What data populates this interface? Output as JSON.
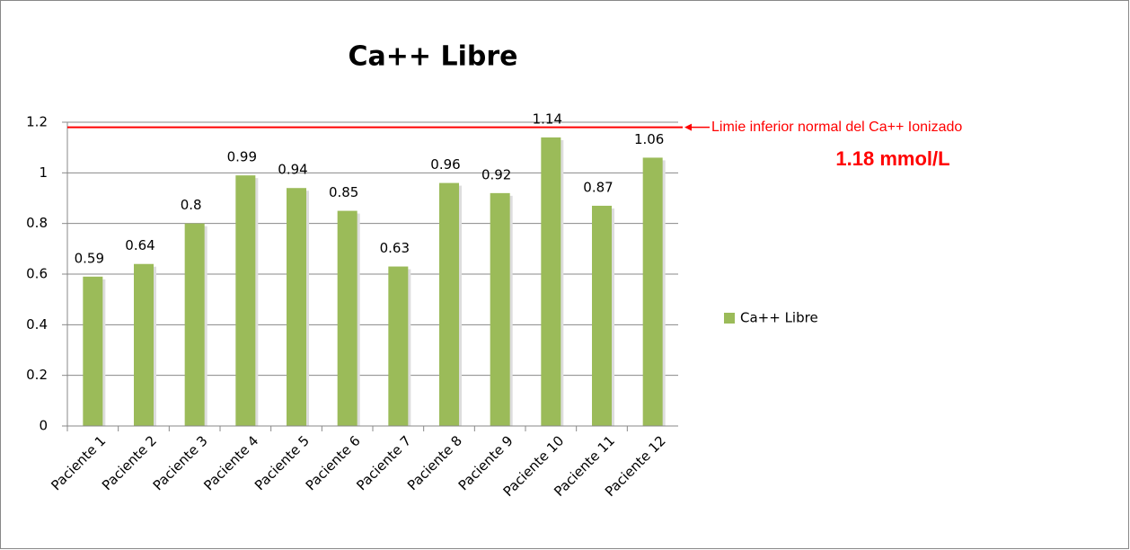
{
  "chart_data": {
    "type": "bar",
    "title": "Ca++ Libre",
    "categories": [
      "Paciente 1",
      "Paciente 2",
      "Paciente 3",
      "Paciente 4",
      "Paciente 5",
      "Paciente 6",
      "Paciente 7",
      "Paciente 8",
      "Paciente 9",
      "Paciente 10",
      "Paciente 11",
      "Paciente 12"
    ],
    "series": [
      {
        "name": "Ca++ Libre",
        "color": "#9bbb59",
        "values": [
          0.59,
          0.64,
          0.8,
          0.99,
          0.94,
          0.85,
          0.63,
          0.96,
          0.92,
          1.14,
          0.87,
          1.06
        ]
      }
    ],
    "ylim": [
      0,
      1.2
    ],
    "yticks": [
      0,
      0.2,
      0.4,
      0.6,
      0.8,
      1,
      1.2
    ],
    "grid": true,
    "legend": "right",
    "reference_line": {
      "value": 1.18,
      "color": "#ff0000",
      "label": "Limie inferior normal del Ca++ Ionizado",
      "sublabel": "1.18 mmol/L"
    }
  }
}
